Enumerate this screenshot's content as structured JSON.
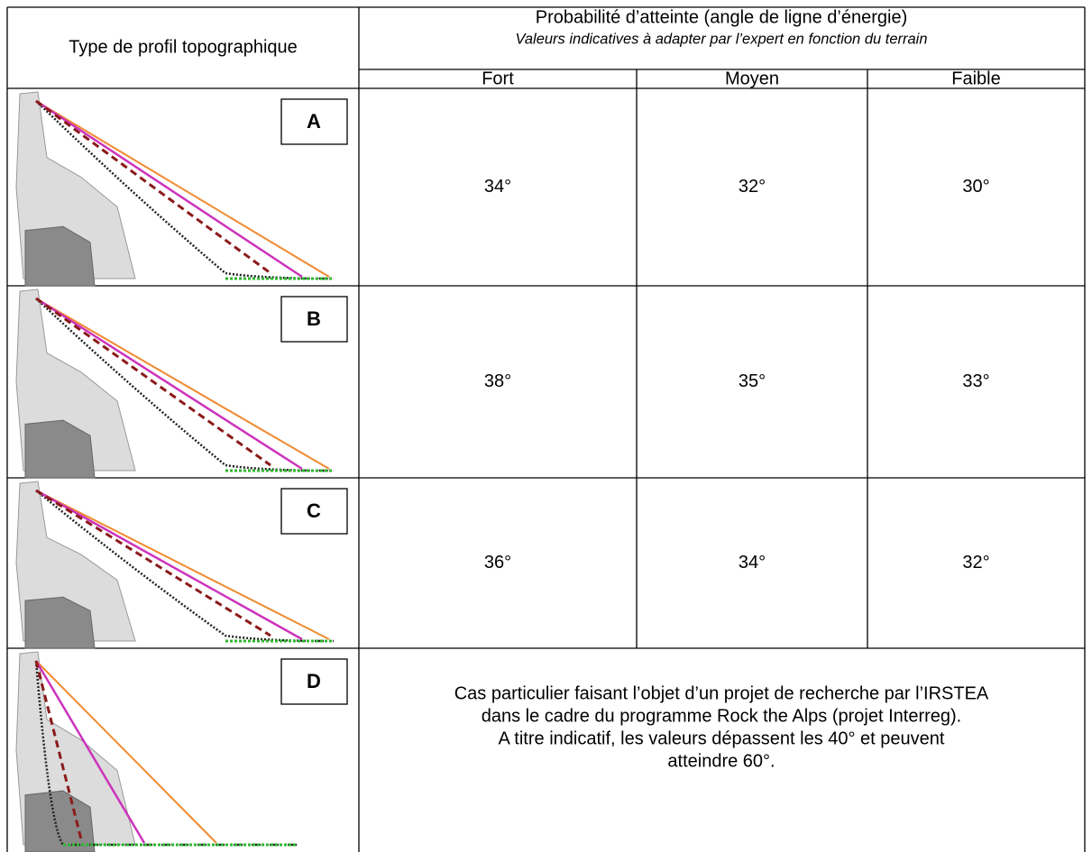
{
  "header": {
    "first_column": "Type de profil topographique",
    "title": "Probabilité d’atteinte (angle de ligne d’énergie)",
    "subtitle": "Valeurs indicatives à adapter par l’expert en fonction du terrain",
    "columns": [
      "Fort",
      "Moyen",
      "Faible"
    ]
  },
  "rows": [
    {
      "label": "A",
      "values": [
        "34°",
        "32°",
        "30°"
      ]
    },
    {
      "label": "B",
      "values": [
        "38°",
        "35°",
        "33°"
      ]
    },
    {
      "label": "C",
      "values": [
        "36°",
        "34°",
        "32°"
      ]
    },
    {
      "label": "D",
      "note": [
        "Cas particulier faisant l’objet d’un projet de recherche par l’IRSTEA",
        "dans le cadre du programme Rock the Alps (projet Interreg).",
        "A titre indicatif, les valeurs dépassent les 40° et peuvent",
        "atteindre 60°."
      ]
    }
  ]
}
